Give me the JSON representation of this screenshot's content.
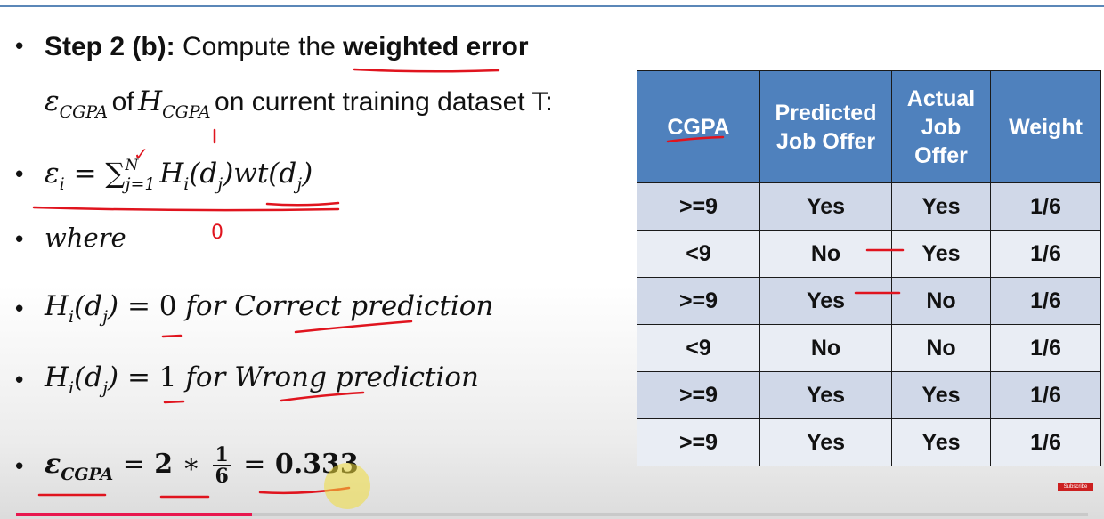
{
  "step": {
    "label": "Step 2 (b):",
    "text_before": "Compute the",
    "emphasis": "weighted error"
  },
  "line2": {
    "epsilon": "ε",
    "eps_sub": "CGPA",
    "of": "of",
    "H": "H",
    "H_sub": "CGPA",
    "rest": "on current training dataset T:"
  },
  "formula": {
    "lhs": "ε",
    "lhs_sub": "i",
    "eq": "=",
    "sum": "∑",
    "sum_sub": "j=1",
    "sum_sup": "N",
    "H": "H",
    "H_sub": "i",
    "arg_open": "(d",
    "arg_sub": "j",
    "arg_close": ")",
    "wt": "wt(d",
    "wt_sub": "j",
    "wt_close": ")"
  },
  "where": "where",
  "correct_line": {
    "H": "H",
    "H_sub": "i",
    "arg_open": "(d",
    "arg_sub": "j",
    "arg_close": ")",
    "eq": "=",
    "value": "0",
    "text": "for Correct prediction"
  },
  "wrong_line": {
    "H": "H",
    "H_sub": "i",
    "arg_open": "(d",
    "arg_sub": "j",
    "arg_close": ")",
    "eq": "=",
    "value": "1",
    "text": "for Wrong prediction"
  },
  "result": {
    "eps": "ε",
    "eps_sub": "CGPA",
    "eq": "=",
    "two": "2",
    "times": "∗",
    "num": "1",
    "den": "6",
    "eq2": "=",
    "value": "0.333"
  },
  "annotations": {
    "tick": "✓",
    "zero": "0"
  },
  "table": {
    "headers": [
      "CGPA",
      "Predicted Job Offer",
      "Actual Job Offer",
      "Weight"
    ],
    "rows": [
      [
        ">=9",
        "Yes",
        "Yes",
        "1/6"
      ],
      [
        "<9",
        "No",
        "Yes",
        "1/6"
      ],
      [
        ">=9",
        "Yes",
        "No",
        "1/6"
      ],
      [
        "<9",
        "No",
        "No",
        "1/6"
      ],
      [
        ">=9",
        "Yes",
        "Yes",
        "1/6"
      ],
      [
        ">=9",
        "Yes",
        "Yes",
        "1/6"
      ]
    ]
  },
  "colors": {
    "header_bg": "#4f81bd",
    "row_odd": "#d0d8e8",
    "row_even": "#e9edf4",
    "ink_red": "#e0141e",
    "progress": "#e8174e"
  },
  "video": {
    "badge": "Subscribe",
    "progress": 0.22
  }
}
